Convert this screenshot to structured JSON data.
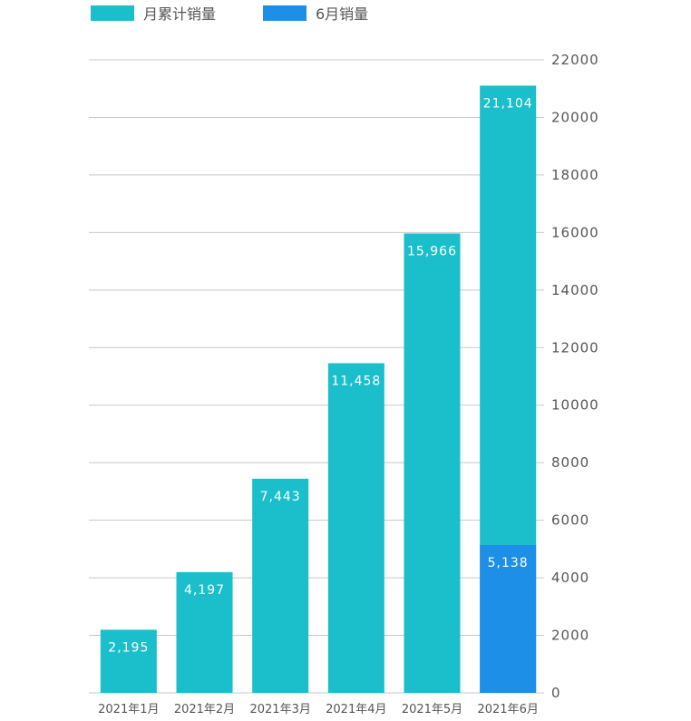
{
  "legend": [
    {
      "label": "月累计销量",
      "color": "#1ABFCB"
    },
    {
      "label": "6月销量",
      "color": "#1E8FE6"
    }
  ],
  "chart_data": {
    "type": "bar",
    "categories": [
      "2021年1月",
      "2021年2月",
      "2021年3月",
      "2021年4月",
      "2021年5月",
      "2021年6月"
    ],
    "series": [
      {
        "name": "月累计销量",
        "values": [
          2195,
          4197,
          7443,
          11458,
          15966,
          21104
        ],
        "color": "#1ABFCB"
      },
      {
        "name": "6月销量",
        "values": [
          null,
          null,
          null,
          null,
          null,
          5138
        ],
        "color": "#1E8FE6"
      }
    ],
    "data_labels": [
      "2,195",
      "4,197",
      "7,443",
      "11,458",
      "15,966",
      "21,104"
    ],
    "overlay_label": "5,138",
    "y_ticks": [
      0,
      2000,
      4000,
      6000,
      8000,
      10000,
      12000,
      14000,
      16000,
      18000,
      20000,
      22000
    ],
    "ylim": [
      0,
      22000
    ],
    "y_axis_position": "right",
    "grid": true,
    "legend_position": "top-left"
  }
}
